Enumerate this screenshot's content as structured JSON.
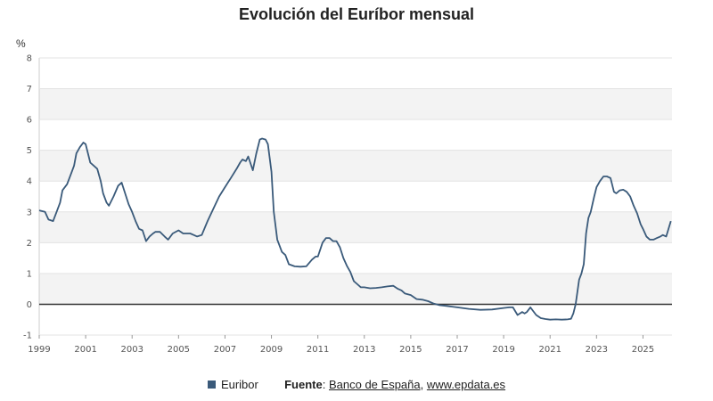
{
  "colors": {
    "series": "#3a5a7a",
    "grid": "#e3e3e3",
    "band": "#f3f3f3",
    "zero": "#333333",
    "axis": "#cccccc"
  },
  "legend": {
    "series_label": "Euribor",
    "source_label": "Fuente",
    "source_sep": ":",
    "source_name": "Banco de España",
    "source_comma": ",",
    "source_url": "www.epdata.es"
  },
  "chart_data": {
    "type": "line",
    "title": "Evolución del Euríbor mensual",
    "ylabel": "%",
    "ylim": [
      -1,
      8
    ],
    "xlim": [
      1999.0,
      2026.25
    ],
    "y_ticks": [
      -1,
      0,
      1,
      2,
      3,
      4,
      5,
      6,
      7,
      8
    ],
    "x_ticks": [
      1999,
      2001,
      2003,
      2005,
      2007,
      2009,
      2011,
      2013,
      2015,
      2017,
      2019,
      2021,
      2023,
      2025
    ],
    "grid": true,
    "legend_position": "bottom",
    "series": [
      {
        "name": "Euribor",
        "x": [
          1999.0,
          1999.25,
          1999.4,
          1999.6,
          1999.75,
          1999.9,
          2000.0,
          2000.2,
          2000.4,
          2000.5,
          2000.6,
          2000.75,
          2000.9,
          2001.0,
          2001.2,
          2001.35,
          2001.5,
          2001.65,
          2001.75,
          2001.9,
          2002.0,
          2002.2,
          2002.4,
          2002.55,
          2002.7,
          2002.85,
          2003.0,
          2003.15,
          2003.3,
          2003.45,
          2003.6,
          2003.75,
          2003.9,
          2004.0,
          2004.2,
          2004.4,
          2004.55,
          2004.75,
          2005.0,
          2005.2,
          2005.35,
          2005.5,
          2005.65,
          2005.8,
          2006.0,
          2006.25,
          2006.5,
          2006.75,
          2007.0,
          2007.25,
          2007.5,
          2007.65,
          2007.75,
          2007.9,
          2008.0,
          2008.2,
          2008.35,
          2008.5,
          2008.6,
          2008.75,
          2008.85,
          2009.0,
          2009.1,
          2009.25,
          2009.45,
          2009.6,
          2009.75,
          2010.0,
          2010.25,
          2010.5,
          2010.75,
          2010.9,
          2011.0,
          2011.2,
          2011.35,
          2011.5,
          2011.65,
          2011.8,
          2011.95,
          2012.1,
          2012.25,
          2012.4,
          2012.55,
          2012.7,
          2012.85,
          2013.0,
          2013.25,
          2013.5,
          2013.75,
          2014.0,
          2014.25,
          2014.45,
          2014.6,
          2014.75,
          2015.0,
          2015.25,
          2015.5,
          2015.75,
          2016.0,
          2016.25,
          2016.5,
          2017.0,
          2017.5,
          2018.0,
          2018.5,
          2019.0,
          2019.25,
          2019.4,
          2019.6,
          2019.8,
          2019.9,
          2020.0,
          2020.15,
          2020.25,
          2020.4,
          2020.6,
          2020.8,
          2021.0,
          2021.25,
          2021.5,
          2021.75,
          2021.9,
          2022.0,
          2022.1,
          2022.25,
          2022.35,
          2022.45,
          2022.55,
          2022.65,
          2022.75,
          2022.9,
          2023.0,
          2023.15,
          2023.3,
          2023.45,
          2023.6,
          2023.75,
          2023.85,
          2024.0,
          2024.15,
          2024.3,
          2024.45,
          2024.6,
          2024.75,
          2024.9,
          2025.0,
          2025.15,
          2025.3,
          2025.45,
          2025.6,
          2025.75,
          2025.85,
          2026.0,
          2026.2
        ],
        "values": [
          3.05,
          3.0,
          2.75,
          2.7,
          3.0,
          3.3,
          3.7,
          3.9,
          4.3,
          4.5,
          4.9,
          5.1,
          5.25,
          5.2,
          4.6,
          4.5,
          4.4,
          4.0,
          3.6,
          3.3,
          3.2,
          3.5,
          3.85,
          3.95,
          3.6,
          3.25,
          3.0,
          2.7,
          2.45,
          2.4,
          2.05,
          2.2,
          2.3,
          2.35,
          2.35,
          2.2,
          2.1,
          2.3,
          2.4,
          2.3,
          2.3,
          2.3,
          2.25,
          2.2,
          2.25,
          2.7,
          3.1,
          3.5,
          3.8,
          4.1,
          4.4,
          4.6,
          4.7,
          4.65,
          4.8,
          4.35,
          4.9,
          5.35,
          5.38,
          5.35,
          5.2,
          4.3,
          3.0,
          2.1,
          1.7,
          1.6,
          1.3,
          1.23,
          1.22,
          1.23,
          1.45,
          1.55,
          1.55,
          2.0,
          2.15,
          2.15,
          2.05,
          2.05,
          1.85,
          1.5,
          1.25,
          1.05,
          0.75,
          0.65,
          0.55,
          0.55,
          0.52,
          0.53,
          0.55,
          0.58,
          0.6,
          0.5,
          0.45,
          0.35,
          0.3,
          0.17,
          0.15,
          0.1,
          0.02,
          -0.03,
          -0.05,
          -0.1,
          -0.15,
          -0.18,
          -0.17,
          -0.12,
          -0.1,
          -0.1,
          -0.35,
          -0.25,
          -0.3,
          -0.25,
          -0.1,
          -0.2,
          -0.35,
          -0.45,
          -0.48,
          -0.5,
          -0.49,
          -0.5,
          -0.49,
          -0.47,
          -0.3,
          0.0,
          0.8,
          1.0,
          1.3,
          2.3,
          2.8,
          3.0,
          3.5,
          3.8,
          4.0,
          4.15,
          4.15,
          4.1,
          3.65,
          3.6,
          3.7,
          3.72,
          3.65,
          3.5,
          3.2,
          2.95,
          2.6,
          2.45,
          2.2,
          2.1,
          2.1,
          2.15,
          2.2,
          2.25,
          2.2,
          2.7
        ]
      }
    ]
  }
}
